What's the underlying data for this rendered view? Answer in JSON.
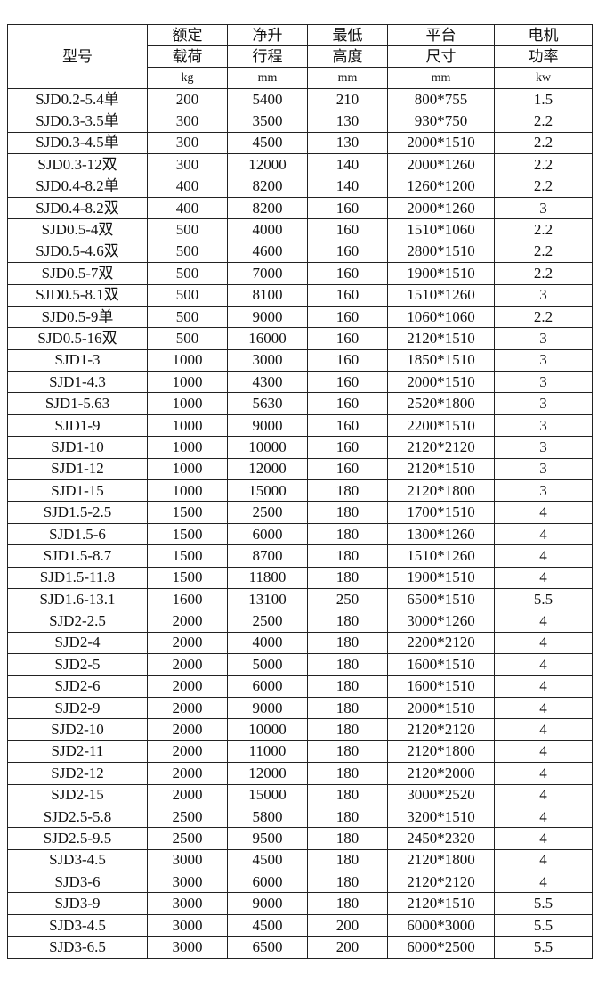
{
  "header": {
    "model": "型号",
    "columns": [
      {
        "line1": "额定",
        "line2": "载荷",
        "unit": "kg"
      },
      {
        "line1": "净升",
        "line2": "行程",
        "unit": "mm"
      },
      {
        "line1": "最低",
        "line2": "高度",
        "unit": "mm"
      },
      {
        "line1": "平台",
        "line2": "尺寸",
        "unit": "mm"
      },
      {
        "line1": "电机",
        "line2": "功率",
        "unit": "kw"
      }
    ]
  },
  "rows": [
    [
      "SJD0.2-5.4单",
      "200",
      "5400",
      "210",
      "800*755",
      "1.5"
    ],
    [
      "SJD0.3-3.5单",
      "300",
      "3500",
      "130",
      "930*750",
      "2.2"
    ],
    [
      "SJD0.3-4.5单",
      "300",
      "4500",
      "130",
      "2000*1510",
      "2.2"
    ],
    [
      "SJD0.3-12双",
      "300",
      "12000",
      "140",
      "2000*1260",
      "2.2"
    ],
    [
      "SJD0.4-8.2单",
      "400",
      "8200",
      "140",
      "1260*1200",
      "2.2"
    ],
    [
      "SJD0.4-8.2双",
      "400",
      "8200",
      "160",
      "2000*1260",
      "3"
    ],
    [
      "SJD0.5-4双",
      "500",
      "4000",
      "160",
      "1510*1060",
      "2.2"
    ],
    [
      "SJD0.5-4.6双",
      "500",
      "4600",
      "160",
      "2800*1510",
      "2.2"
    ],
    [
      "SJD0.5-7双",
      "500",
      "7000",
      "160",
      "1900*1510",
      "2.2"
    ],
    [
      "SJD0.5-8.1双",
      "500",
      "8100",
      "160",
      "1510*1260",
      "3"
    ],
    [
      "SJD0.5-9单",
      "500",
      "9000",
      "160",
      "1060*1060",
      "2.2"
    ],
    [
      "SJD0.5-16双",
      "500",
      "16000",
      "160",
      "2120*1510",
      "3"
    ],
    [
      "SJD1-3",
      "1000",
      "3000",
      "160",
      "1850*1510",
      "3"
    ],
    [
      "SJD1-4.3",
      "1000",
      "4300",
      "160",
      "2000*1510",
      "3"
    ],
    [
      "SJD1-5.63",
      "1000",
      "5630",
      "160",
      "2520*1800",
      "3"
    ],
    [
      "SJD1-9",
      "1000",
      "9000",
      "160",
      "2200*1510",
      "3"
    ],
    [
      "SJD1-10",
      "1000",
      "10000",
      "160",
      "2120*2120",
      "3"
    ],
    [
      "SJD1-12",
      "1000",
      "12000",
      "160",
      "2120*1510",
      "3"
    ],
    [
      "SJD1-15",
      "1000",
      "15000",
      "180",
      "2120*1800",
      "3"
    ],
    [
      "SJD1.5-2.5",
      "1500",
      "2500",
      "180",
      "1700*1510",
      "4"
    ],
    [
      "SJD1.5-6",
      "1500",
      "6000",
      "180",
      "1300*1260",
      "4"
    ],
    [
      "SJD1.5-8.7",
      "1500",
      "8700",
      "180",
      "1510*1260",
      "4"
    ],
    [
      "SJD1.5-11.8",
      "1500",
      "11800",
      "180",
      "1900*1510",
      "4"
    ],
    [
      "SJD1.6-13.1",
      "1600",
      "13100",
      "250",
      "6500*1510",
      "5.5"
    ],
    [
      "SJD2-2.5",
      "2000",
      "2500",
      "180",
      "3000*1260",
      "4"
    ],
    [
      "SJD2-4",
      "2000",
      "4000",
      "180",
      "2200*2120",
      "4"
    ],
    [
      "SJD2-5",
      "2000",
      "5000",
      "180",
      "1600*1510",
      "4"
    ],
    [
      "SJD2-6",
      "2000",
      "6000",
      "180",
      "1600*1510",
      "4"
    ],
    [
      "SJD2-9",
      "2000",
      "9000",
      "180",
      "2000*1510",
      "4"
    ],
    [
      "SJD2-10",
      "2000",
      "10000",
      "180",
      "2120*2120",
      "4"
    ],
    [
      "SJD2-11",
      "2000",
      "11000",
      "180",
      "2120*1800",
      "4"
    ],
    [
      "SJD2-12",
      "2000",
      "12000",
      "180",
      "2120*2000",
      "4"
    ],
    [
      "SJD2-15",
      "2000",
      "15000",
      "180",
      "3000*2520",
      "4"
    ],
    [
      "SJD2.5-5.8",
      "2500",
      "5800",
      "180",
      "3200*1510",
      "4"
    ],
    [
      "SJD2.5-9.5",
      "2500",
      "9500",
      "180",
      "2450*2320",
      "4"
    ],
    [
      "SJD3-4.5",
      "3000",
      "4500",
      "180",
      "2120*1800",
      "4"
    ],
    [
      "SJD3-6",
      "3000",
      "6000",
      "180",
      "2120*2120",
      "4"
    ],
    [
      "SJD3-9",
      "3000",
      "9000",
      "180",
      "2120*1510",
      "5.5"
    ],
    [
      "SJD3-4.5",
      "3000",
      "4500",
      "200",
      "6000*3000",
      "5.5"
    ],
    [
      "SJD3-6.5",
      "3000",
      "6500",
      "200",
      "6000*2500",
      "5.5"
    ]
  ]
}
